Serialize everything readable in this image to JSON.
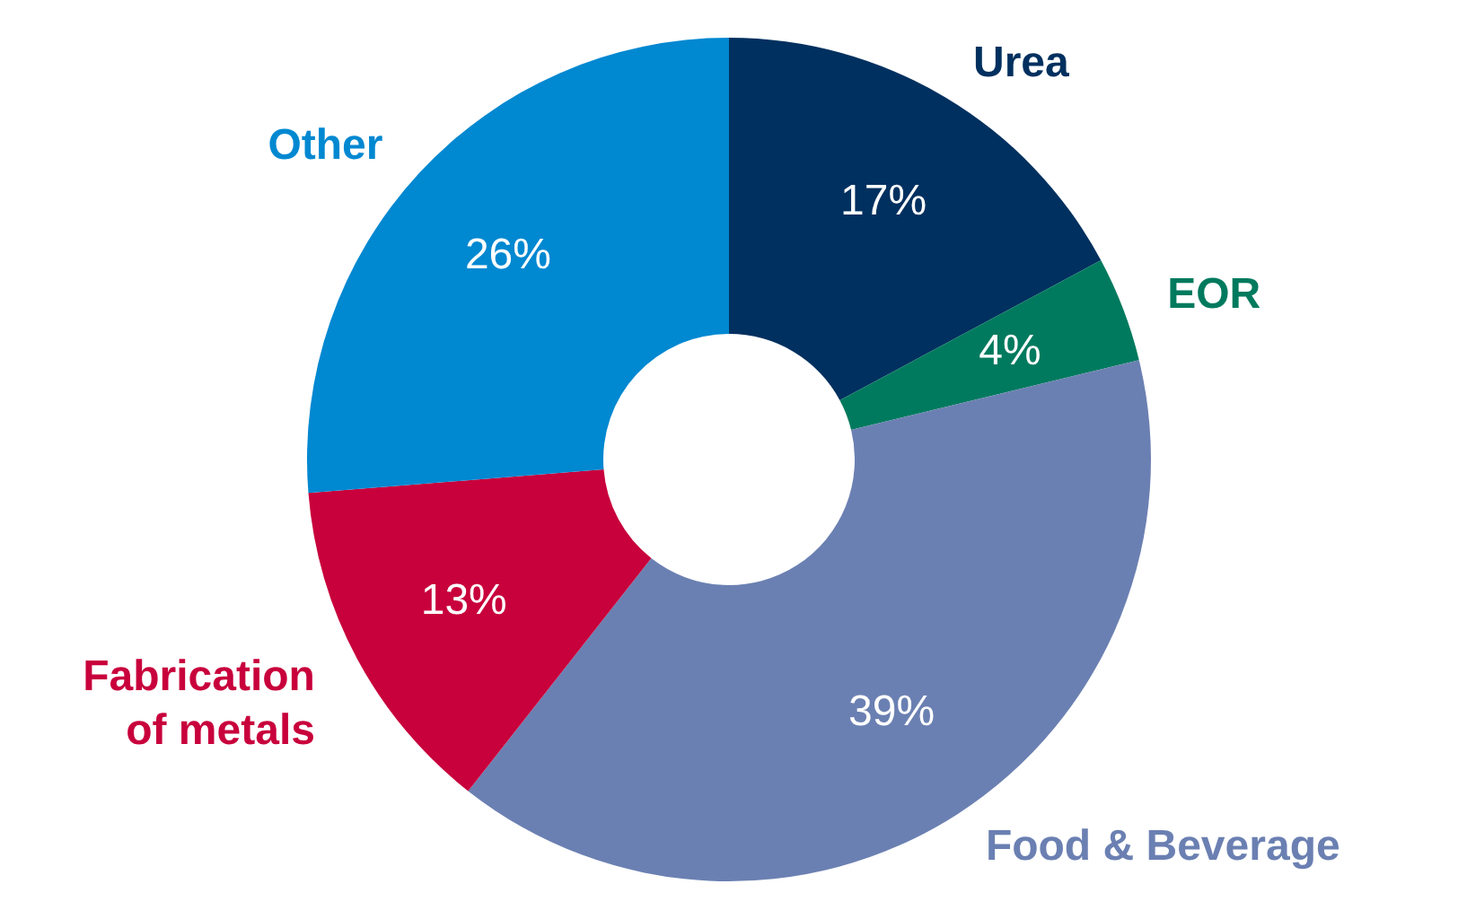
{
  "chart_data": {
    "type": "donut",
    "categories": [
      "Urea",
      "EOR",
      "Food & Beverage",
      "Fabrication of metals",
      "Other"
    ],
    "values": [
      17,
      4,
      39,
      13,
      26
    ],
    "value_labels": [
      "17%",
      "4%",
      "39%",
      "13%",
      "26%"
    ],
    "colors": [
      "#00305f",
      "#007a5e",
      "#6b80b2",
      "#c8003c",
      "#0088d1"
    ]
  }
}
